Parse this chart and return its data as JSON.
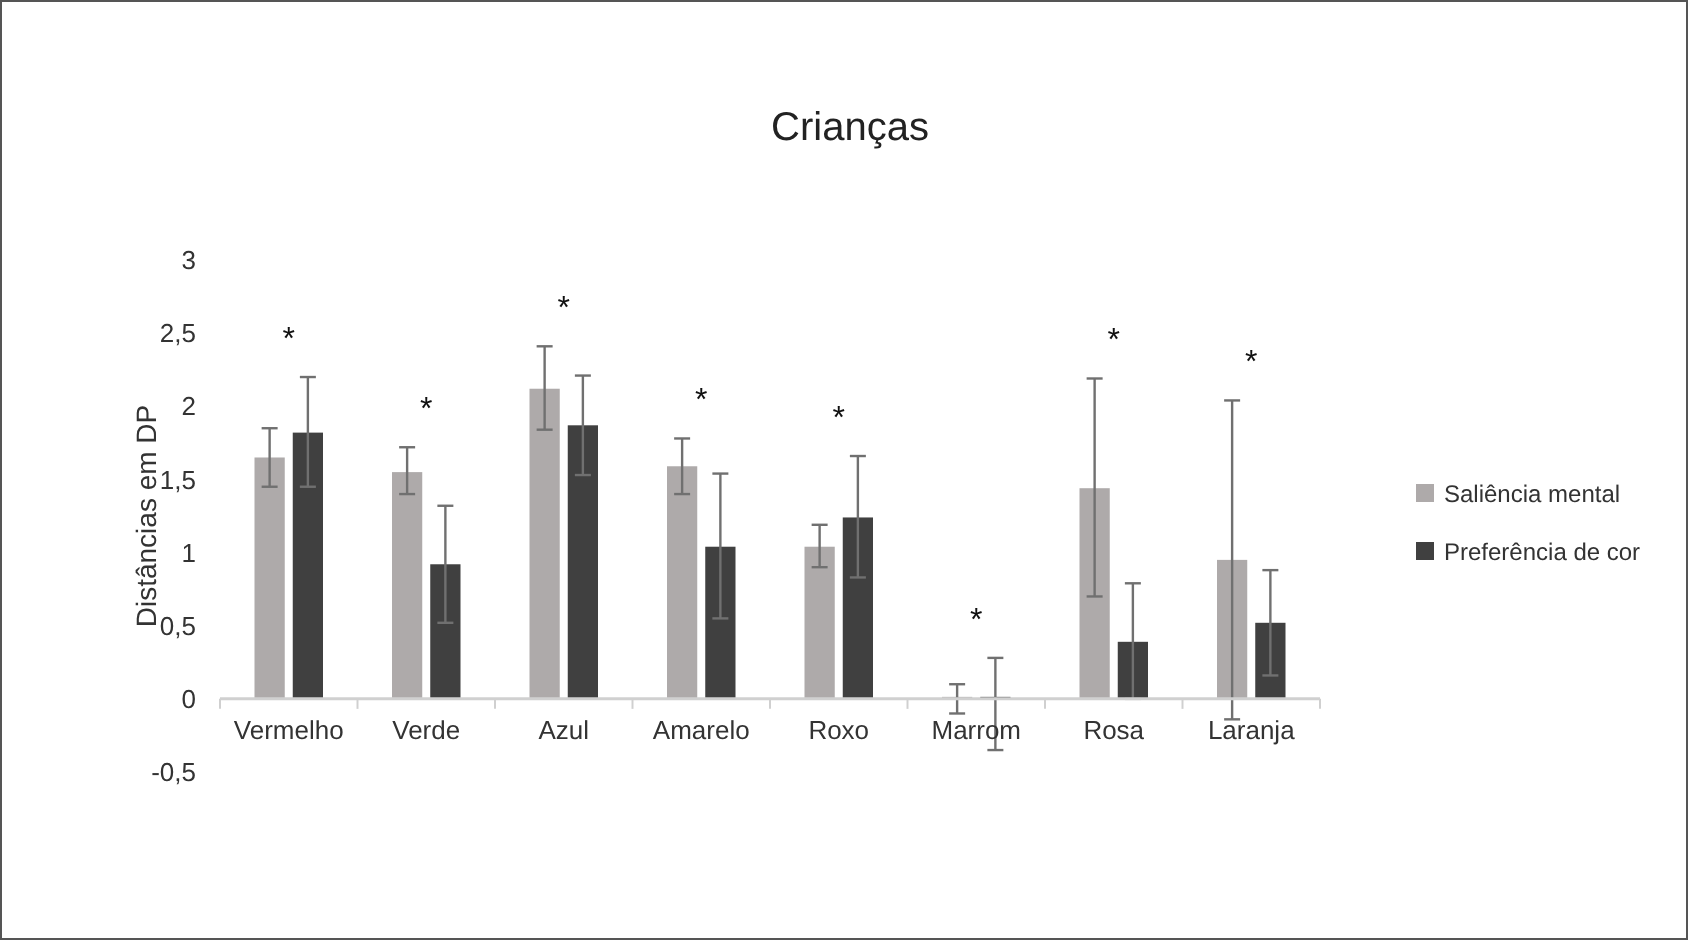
{
  "chart_data": {
    "type": "bar",
    "title": "Crianças",
    "ylabel": "Distâncias em DP",
    "categories": [
      "Vermelho",
      "Verde",
      "Azul",
      "Amarelo",
      "Roxo",
      "Marrom",
      "Rosa",
      "Laranja"
    ],
    "series": [
      {
        "name": "Saliência mental",
        "color": "#aeaaaa",
        "values": [
          1.65,
          1.55,
          2.12,
          1.59,
          1.04,
          0,
          1.44,
          0.95
        ],
        "errors": [
          [
            1.45,
            1.85
          ],
          [
            1.4,
            1.72
          ],
          [
            1.84,
            2.41
          ],
          [
            1.4,
            1.78
          ],
          [
            0.9,
            1.19
          ],
          [
            -0.1,
            0.1
          ],
          [
            0.7,
            2.19
          ],
          [
            -0.14,
            2.04
          ]
        ]
      },
      {
        "name": "Preferência de cor",
        "color": "#404040",
        "values": [
          1.82,
          0.92,
          1.87,
          1.04,
          1.24,
          0,
          0.39,
          0.52
        ],
        "errors": [
          [
            1.45,
            2.2
          ],
          [
            0.52,
            1.32
          ],
          [
            1.53,
            2.21
          ],
          [
            0.55,
            1.54
          ],
          [
            0.83,
            1.66
          ],
          [
            -0.35,
            0.28
          ],
          [
            0,
            0.79
          ],
          [
            0.16,
            0.88
          ]
        ]
      }
    ],
    "ylim": [
      -0.5,
      3
    ],
    "yticks": [
      {
        "value": -0.5,
        "label": "-0,5"
      },
      0,
      {
        "value": 0.5,
        "label": "0,5"
      },
      1,
      {
        "value": 1.5,
        "label": "1,5"
      },
      2,
      {
        "value": 2.5,
        "label": "2,5"
      },
      3
    ],
    "grid": false,
    "legend": "right",
    "annotations": [
      "*",
      "*",
      "*",
      "*",
      "*",
      "*",
      "*",
      "*"
    ]
  }
}
